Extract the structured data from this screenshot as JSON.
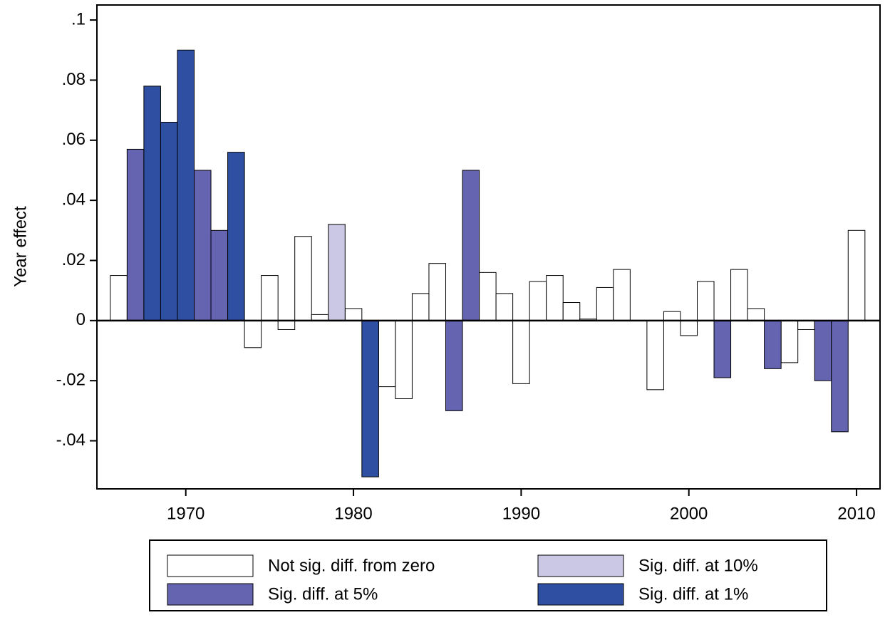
{
  "chart_data": {
    "type": "bar",
    "y_label": "Year effect",
    "x": [
      1966,
      1967,
      1968,
      1969,
      1970,
      1971,
      1972,
      1973,
      1974,
      1975,
      1976,
      1977,
      1978,
      1979,
      1980,
      1981,
      1982,
      1983,
      1984,
      1985,
      1986,
      1987,
      1988,
      1989,
      1990,
      1991,
      1992,
      1993,
      1994,
      1995,
      1996,
      1998,
      1999,
      2000,
      2001,
      2002,
      2003,
      2004,
      2005,
      2006,
      2007,
      2008,
      2009,
      2010
    ],
    "series": [
      {
        "name": "Not sig. diff. from zero",
        "color": "#ffffff",
        "values": [
          0.015,
          null,
          null,
          null,
          null,
          null,
          null,
          null,
          -0.009,
          0.015,
          -0.003,
          0.028,
          0.002,
          null,
          0.004,
          null,
          -0.022,
          -0.026,
          0.009,
          0.019,
          null,
          null,
          0.016,
          0.009,
          -0.021,
          0.013,
          0.015,
          0.006,
          0.0005,
          0.011,
          0.017,
          -0.023,
          0.003,
          -0.005,
          0.013,
          null,
          0.017,
          0.004,
          null,
          -0.014,
          -0.003,
          null,
          null,
          0.03
        ]
      },
      {
        "name": "Sig. diff. at 10%",
        "color": "#cac8e4",
        "values": [
          null,
          null,
          null,
          null,
          null,
          null,
          null,
          null,
          null,
          null,
          null,
          null,
          null,
          0.032,
          null,
          null,
          null,
          null,
          null,
          null,
          null,
          null,
          null,
          null,
          null,
          null,
          null,
          null,
          null,
          null,
          null,
          null,
          null,
          null,
          null,
          null,
          null,
          null,
          null,
          null,
          null,
          null,
          null,
          null
        ]
      },
      {
        "name": "Sig. diff. at 5%",
        "color": "#6464b0",
        "values": [
          null,
          0.057,
          null,
          null,
          null,
          0.05,
          0.03,
          null,
          null,
          null,
          null,
          null,
          null,
          null,
          null,
          null,
          null,
          null,
          null,
          null,
          -0.03,
          0.05,
          null,
          null,
          null,
          null,
          null,
          null,
          null,
          null,
          null,
          null,
          null,
          null,
          null,
          -0.019,
          null,
          null,
          -0.016,
          null,
          null,
          -0.02,
          -0.037,
          null
        ]
      },
      {
        "name": "Sig. diff. at 1%",
        "color": "#2f4fa2",
        "values": [
          null,
          null,
          0.078,
          0.066,
          0.09,
          null,
          null,
          0.056,
          null,
          null,
          null,
          null,
          null,
          null,
          null,
          -0.052,
          null,
          null,
          null,
          null,
          null,
          null,
          null,
          null,
          null,
          null,
          null,
          null,
          null,
          null,
          null,
          null,
          null,
          null,
          null,
          null,
          null,
          null,
          null,
          null,
          null,
          null,
          null,
          null
        ]
      }
    ],
    "xlim": [
      1964.7,
      2011.4
    ],
    "xticks": [
      1970,
      1980,
      1990,
      2000,
      2010
    ],
    "ylim": [
      -0.056,
      0.105
    ],
    "yticks": [
      {
        "value": -0.04,
        "label": "-.04"
      },
      {
        "value": -0.02,
        "label": "-.02"
      },
      0,
      {
        "value": 0.02,
        "label": ".02"
      },
      {
        "value": 0.04,
        "label": ".04"
      },
      {
        "value": 0.06,
        "label": ".06"
      },
      {
        "value": 0.08,
        "label": ".08"
      },
      {
        "value": 0.1,
        "label": ".1"
      }
    ],
    "grid": false
  }
}
